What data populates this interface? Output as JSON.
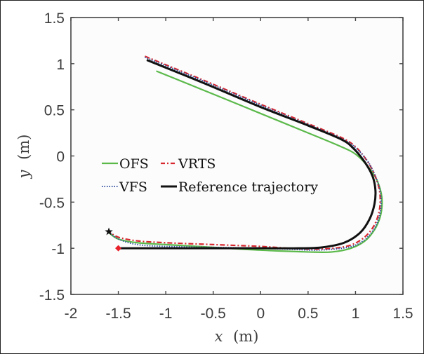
{
  "chart_data": {
    "type": "line",
    "title": "",
    "xlabel_var": "x",
    "xlabel_unit": "(m)",
    "ylabel_var": "y",
    "ylabel_unit": "(m)",
    "xlim": [
      -2,
      1.5
    ],
    "ylim": [
      -1.5,
      1.5
    ],
    "xticks": [
      -2,
      -1.5,
      -1,
      -0.5,
      0,
      0.5,
      1,
      1.5
    ],
    "yticks": [
      -1.5,
      -1,
      -0.5,
      0,
      0.5,
      1,
      1.5
    ],
    "xtick_labels": [
      "-2",
      "-1.5",
      "-1",
      "-0.5",
      "0",
      "0.5",
      "1",
      "1.5"
    ],
    "ytick_labels": [
      "-1.5",
      "-1",
      "-0.5",
      "0",
      "0.5",
      "1",
      "1.5"
    ],
    "grid": false,
    "legend_position": "center-left",
    "background": "#fcfcfc",
    "series": [
      {
        "name": "OFS",
        "color": "#5bb94a",
        "style": "solid",
        "points": [
          [
            -1.1,
            0.92
          ],
          [
            -0.5,
            0.67
          ],
          [
            0,
            0.46
          ],
          [
            0.5,
            0.25
          ],
          [
            0.85,
            0.1
          ],
          [
            1.0,
            0.02
          ],
          [
            1.12,
            -0.1
          ],
          [
            1.22,
            -0.25
          ],
          [
            1.27,
            -0.4
          ],
          [
            1.28,
            -0.52
          ],
          [
            1.26,
            -0.66
          ],
          [
            1.2,
            -0.8
          ],
          [
            1.1,
            -0.92
          ],
          [
            0.95,
            -1.0
          ],
          [
            0.75,
            -1.04
          ],
          [
            0.5,
            -1.04
          ],
          [
            0,
            -1.02
          ],
          [
            -0.5,
            -0.99
          ],
          [
            -1.0,
            -0.96
          ],
          [
            -1.3,
            -0.94
          ],
          [
            -1.5,
            -0.9
          ],
          [
            -1.6,
            -0.83
          ]
        ]
      },
      {
        "name": "VRTS",
        "color": "#d7282f",
        "style": "dashdot",
        "points": [
          [
            -1.22,
            1.08
          ],
          [
            -0.6,
            0.82
          ],
          [
            0,
            0.56
          ],
          [
            0.5,
            0.35
          ],
          [
            0.85,
            0.2
          ],
          [
            1.0,
            0.1
          ],
          [
            1.12,
            -0.05
          ],
          [
            1.2,
            -0.2
          ],
          [
            1.25,
            -0.36
          ],
          [
            1.26,
            -0.5
          ],
          [
            1.24,
            -0.64
          ],
          [
            1.18,
            -0.78
          ],
          [
            1.07,
            -0.9
          ],
          [
            0.9,
            -0.98
          ],
          [
            0.6,
            -1.01
          ],
          [
            0.3,
            -1.0
          ],
          [
            0,
            -0.98
          ],
          [
            -0.5,
            -0.96
          ],
          [
            -1.0,
            -0.94
          ],
          [
            -1.3,
            -0.92
          ],
          [
            -1.5,
            -0.88
          ],
          [
            -1.6,
            -0.82
          ]
        ]
      },
      {
        "name": "VFS",
        "color": "#2f4f9f",
        "style": "dotted",
        "points": [
          [
            -1.22,
            1.07
          ],
          [
            -0.6,
            0.81
          ],
          [
            0,
            0.55
          ],
          [
            0.5,
            0.34
          ],
          [
            0.85,
            0.19
          ],
          [
            1.0,
            0.09
          ],
          [
            1.13,
            -0.06
          ],
          [
            1.21,
            -0.22
          ],
          [
            1.26,
            -0.38
          ],
          [
            1.27,
            -0.52
          ],
          [
            1.25,
            -0.66
          ],
          [
            1.19,
            -0.8
          ],
          [
            1.08,
            -0.92
          ],
          [
            0.92,
            -0.99
          ],
          [
            0.6,
            -1.02
          ],
          [
            0.3,
            -1.01
          ],
          [
            0,
            -1.0
          ],
          [
            -0.5,
            -0.99
          ],
          [
            -1.0,
            -0.98
          ],
          [
            -1.3,
            -0.96
          ],
          [
            -1.5,
            -0.9
          ],
          [
            -1.6,
            -0.82
          ]
        ]
      },
      {
        "name": "Reference trajectory",
        "color": "#111111",
        "style": "solid",
        "points": [
          [
            -1.2,
            1.04
          ],
          [
            -0.6,
            0.79
          ],
          [
            0,
            0.53
          ],
          [
            0.5,
            0.33
          ],
          [
            0.85,
            0.18
          ],
          [
            0.98,
            0.08
          ],
          [
            1.1,
            -0.07
          ],
          [
            1.18,
            -0.22
          ],
          [
            1.21,
            -0.37
          ],
          [
            1.2,
            -0.52
          ],
          [
            1.15,
            -0.68
          ],
          [
            1.05,
            -0.83
          ],
          [
            0.88,
            -0.94
          ],
          [
            0.65,
            -0.99
          ],
          [
            0.4,
            -1.0
          ],
          [
            0,
            -1.0
          ],
          [
            -0.5,
            -1.0
          ],
          [
            -1.0,
            -1.0
          ],
          [
            -1.5,
            -1.0
          ]
        ]
      }
    ],
    "markers": [
      {
        "name": "start-star",
        "shape": "star",
        "color": "#111111",
        "x": -1.6,
        "y": -0.82
      },
      {
        "name": "start-diamond",
        "shape": "diamond",
        "color": "#e8202a",
        "x": -1.5,
        "y": -1.0
      }
    ],
    "legend": [
      {
        "label": "OFS",
        "series": 0
      },
      {
        "label": "VRTS",
        "series": 1
      },
      {
        "label": "VFS",
        "series": 2
      },
      {
        "label": "Reference trajectory",
        "series": 3
      }
    ]
  }
}
